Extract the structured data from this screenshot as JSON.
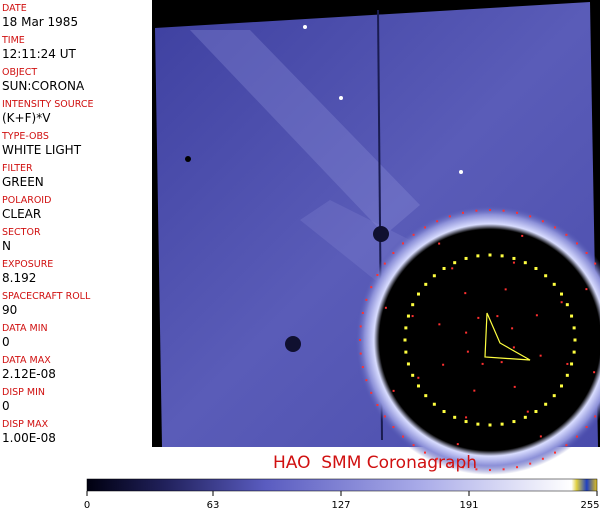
{
  "panel": {
    "fields": [
      {
        "label": "DATE",
        "value": "18 Mar 1985"
      },
      {
        "label": "TIME",
        "value": "12:11:24 UT"
      },
      {
        "label": "OBJECT",
        "value": "SUN:CORONA"
      },
      {
        "label": "INTENSITY SOURCE",
        "value": "(K+F)*V"
      },
      {
        "label": "TYPE-OBS",
        "value": "WHITE LIGHT"
      },
      {
        "label": "FILTER",
        "value": "GREEN"
      },
      {
        "label": "POLAROID",
        "value": "CLEAR"
      },
      {
        "label": "SECTOR",
        "value": "N"
      },
      {
        "label": "EXPOSURE",
        "value": "8.192"
      },
      {
        "label": "SPACECRAFT ROLL",
        "value": "90"
      },
      {
        "label": "DATA MIN",
        "value": "0"
      },
      {
        "label": "DATA MAX",
        "value": "2.12E-08"
      },
      {
        "label": "DISP MIN",
        "value": "0"
      },
      {
        "label": "DISP MAX",
        "value": "1.00E-08"
      }
    ]
  },
  "caption": "HAO  SMM Coronagraph",
  "colorbar": {
    "range": [
      0,
      255
    ],
    "ticks": [
      0,
      63,
      127,
      191,
      255
    ]
  }
}
